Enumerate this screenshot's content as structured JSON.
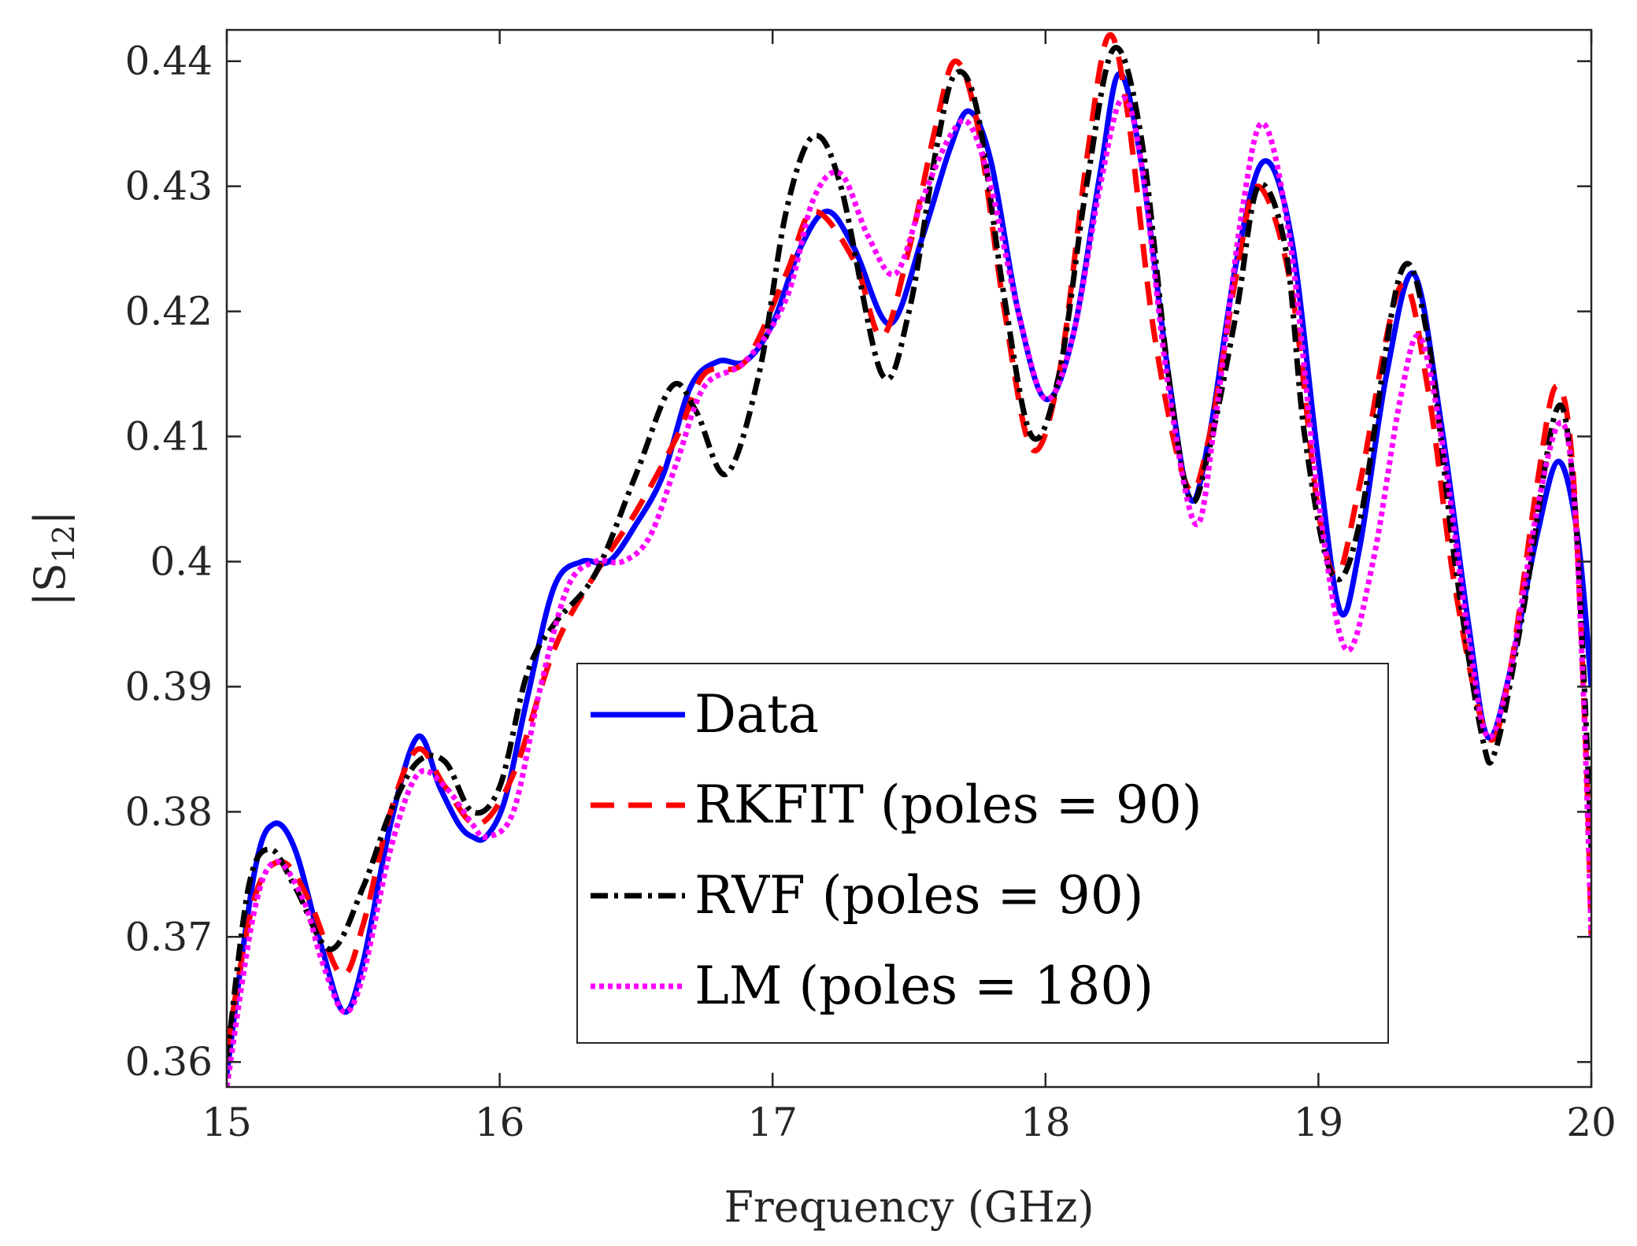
{
  "chart_data": {
    "type": "line",
    "title": "",
    "xlabel": "Frequency (GHz)",
    "ylabel_prefix": "|S",
    "ylabel_sub": "12",
    "ylabel_suffix": "|",
    "xlim": [
      15,
      20
    ],
    "ylim": [
      0.358,
      0.4425
    ],
    "xticks": [
      15,
      16,
      17,
      18,
      19,
      20
    ],
    "xtick_labels": [
      "15",
      "16",
      "17",
      "18",
      "19",
      "20"
    ],
    "yticks": [
      0.36,
      0.37,
      0.38,
      0.39,
      0.4,
      0.41,
      0.42,
      0.43,
      0.44
    ],
    "ytick_labels": [
      "0.36",
      "0.37",
      "0.38",
      "0.39",
      "0.4",
      "0.41",
      "0.42",
      "0.43",
      "0.44"
    ],
    "grid": false,
    "legend_position": "lower-center",
    "series": [
      {
        "name": "Data",
        "style": "solid",
        "color": "#0000ff",
        "x": [
          15.0,
          15.1,
          15.17,
          15.25,
          15.35,
          15.43,
          15.5,
          15.6,
          15.7,
          15.78,
          15.85,
          15.9,
          15.95,
          16.02,
          16.1,
          16.2,
          16.3,
          16.4,
          16.5,
          16.6,
          16.7,
          16.8,
          16.9,
          17.0,
          17.1,
          17.2,
          17.3,
          17.43,
          17.55,
          17.65,
          17.72,
          17.8,
          17.9,
          18.0,
          18.1,
          18.2,
          18.27,
          18.35,
          18.45,
          18.53,
          18.6,
          18.7,
          18.8,
          18.9,
          19.0,
          19.08,
          19.15,
          19.25,
          19.35,
          19.45,
          19.55,
          19.62,
          19.7,
          19.8,
          19.88,
          19.95,
          20.0
        ],
        "y": [
          0.359,
          0.375,
          0.379,
          0.377,
          0.369,
          0.364,
          0.368,
          0.379,
          0.386,
          0.382,
          0.379,
          0.378,
          0.378,
          0.381,
          0.389,
          0.398,
          0.4,
          0.4,
          0.403,
          0.407,
          0.414,
          0.416,
          0.416,
          0.419,
          0.425,
          0.428,
          0.425,
          0.419,
          0.426,
          0.433,
          0.436,
          0.432,
          0.42,
          0.413,
          0.418,
          0.431,
          0.439,
          0.432,
          0.415,
          0.405,
          0.41,
          0.424,
          0.432,
          0.426,
          0.408,
          0.396,
          0.401,
          0.415,
          0.423,
          0.411,
          0.395,
          0.386,
          0.391,
          0.402,
          0.408,
          0.402,
          0.39
        ]
      },
      {
        "name": "RKFIT (poles = 90)",
        "style": "dashed",
        "color": "#ff0000",
        "x": [
          15.0,
          15.1,
          15.2,
          15.3,
          15.42,
          15.5,
          15.6,
          15.7,
          15.8,
          15.92,
          16.05,
          16.2,
          16.35,
          16.5,
          16.65,
          16.75,
          16.9,
          17.05,
          17.15,
          17.3,
          17.4,
          17.5,
          17.6,
          17.67,
          17.75,
          17.85,
          17.95,
          18.05,
          18.15,
          18.23,
          18.3,
          18.4,
          18.52,
          18.6,
          18.7,
          18.78,
          18.9,
          19.0,
          19.07,
          19.15,
          19.3,
          19.4,
          19.5,
          19.62,
          19.7,
          19.8,
          19.87,
          19.93,
          19.98,
          20.0
        ],
        "y": [
          0.361,
          0.373,
          0.376,
          0.373,
          0.367,
          0.371,
          0.38,
          0.385,
          0.382,
          0.379,
          0.383,
          0.393,
          0.399,
          0.404,
          0.41,
          0.415,
          0.416,
          0.423,
          0.428,
          0.424,
          0.418,
          0.425,
          0.435,
          0.44,
          0.435,
          0.42,
          0.409,
          0.415,
          0.432,
          0.442,
          0.436,
          0.418,
          0.406,
          0.41,
          0.423,
          0.43,
          0.422,
          0.404,
          0.399,
          0.406,
          0.422,
          0.414,
          0.398,
          0.386,
          0.391,
          0.406,
          0.414,
          0.408,
          0.385,
          0.37
        ]
      },
      {
        "name": "RVF (poles = 90)",
        "style": "dashdot",
        "color": "#000000",
        "x": [
          15.0,
          15.08,
          15.16,
          15.25,
          15.38,
          15.5,
          15.6,
          15.7,
          15.8,
          15.9,
          16.0,
          16.1,
          16.2,
          16.35,
          16.5,
          16.63,
          16.72,
          16.83,
          16.95,
          17.05,
          17.15,
          17.25,
          17.4,
          17.5,
          17.6,
          17.67,
          17.75,
          17.85,
          17.95,
          18.05,
          18.15,
          18.25,
          18.35,
          18.45,
          18.53,
          18.6,
          18.7,
          18.78,
          18.88,
          18.95,
          19.05,
          19.15,
          19.3,
          19.4,
          19.5,
          19.6,
          19.65,
          19.75,
          19.87,
          19.93,
          19.97,
          20.0
        ],
        "y": [
          0.36,
          0.374,
          0.377,
          0.374,
          0.369,
          0.374,
          0.38,
          0.384,
          0.384,
          0.38,
          0.382,
          0.391,
          0.395,
          0.399,
          0.407,
          0.414,
          0.412,
          0.407,
          0.415,
          0.428,
          0.434,
          0.43,
          0.415,
          0.42,
          0.433,
          0.439,
          0.436,
          0.421,
          0.41,
          0.415,
          0.43,
          0.441,
          0.434,
          0.415,
          0.405,
          0.409,
          0.42,
          0.43,
          0.425,
          0.41,
          0.399,
          0.403,
          0.423,
          0.418,
          0.4,
          0.386,
          0.385,
          0.396,
          0.412,
          0.407,
          0.392,
          0.377
        ]
      },
      {
        "name": "LM (poles = 180)",
        "style": "dotted",
        "color": "#ff00ff",
        "x": [
          15.0,
          15.1,
          15.18,
          15.28,
          15.35,
          15.43,
          15.5,
          15.6,
          15.7,
          15.8,
          15.9,
          15.95,
          16.05,
          16.15,
          16.25,
          16.35,
          16.45,
          16.55,
          16.65,
          16.75,
          16.9,
          17.05,
          17.15,
          17.25,
          17.35,
          17.45,
          17.55,
          17.65,
          17.72,
          17.8,
          17.9,
          18.0,
          18.1,
          18.2,
          18.28,
          18.35,
          18.45,
          18.55,
          18.62,
          18.72,
          18.8,
          18.9,
          19.0,
          19.1,
          19.2,
          19.3,
          19.37,
          19.45,
          19.55,
          19.62,
          19.7,
          19.8,
          19.88,
          19.93,
          19.97,
          20.0
        ],
        "y": [
          0.358,
          0.372,
          0.376,
          0.373,
          0.368,
          0.364,
          0.367,
          0.377,
          0.383,
          0.382,
          0.379,
          0.378,
          0.38,
          0.39,
          0.398,
          0.4,
          0.4,
          0.402,
          0.408,
          0.414,
          0.416,
          0.421,
          0.429,
          0.431,
          0.426,
          0.423,
          0.429,
          0.434,
          0.435,
          0.43,
          0.42,
          0.413,
          0.418,
          0.43,
          0.437,
          0.432,
          0.414,
          0.403,
          0.411,
          0.428,
          0.435,
          0.425,
          0.405,
          0.393,
          0.4,
          0.413,
          0.418,
          0.41,
          0.394,
          0.386,
          0.391,
          0.404,
          0.411,
          0.407,
          0.39,
          0.37
        ]
      }
    ]
  }
}
